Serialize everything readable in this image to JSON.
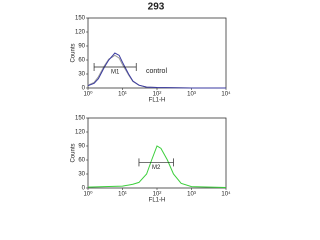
{
  "chart_data": [
    {
      "type": "line",
      "title": "293",
      "xlabel": "FL1-H",
      "ylabel": "Counts",
      "log_x": true,
      "xlim": [
        1,
        10000
      ],
      "ylim": [
        0,
        150
      ],
      "xticks": [
        {
          "value": 1,
          "label": "10⁰"
        },
        {
          "value": 10,
          "label": "10¹"
        },
        {
          "value": 100,
          "label": "10²"
        },
        {
          "value": 1000,
          "label": "10³"
        },
        {
          "value": 10000,
          "label": "10⁴"
        }
      ],
      "yticks": [
        0,
        30,
        60,
        90,
        120,
        150
      ],
      "x": [
        1,
        1.5,
        2,
        3,
        4,
        5,
        6,
        8,
        10,
        15,
        20,
        30,
        50,
        100,
        1000,
        10000
      ],
      "series": [
        {
          "color": "#9a9a9a",
          "values": [
            6,
            12,
            24,
            48,
            62,
            66,
            70,
            64,
            50,
            28,
            14,
            6,
            2,
            1,
            0,
            0
          ]
        },
        {
          "color": "#3a3aa0",
          "values": [
            5,
            10,
            20,
            45,
            60,
            68,
            75,
            70,
            55,
            30,
            15,
            6,
            2,
            1,
            0,
            0
          ]
        }
      ],
      "gate": {
        "label": "M1",
        "range": [
          1.5,
          25
        ],
        "level": 45
      },
      "annotation": "control"
    },
    {
      "type": "line",
      "xlabel": "FL1-H",
      "ylabel": "Counts",
      "log_x": true,
      "xlim": [
        1,
        10000
      ],
      "ylim": [
        0,
        150
      ],
      "xticks": [
        {
          "value": 1,
          "label": "10⁰"
        },
        {
          "value": 10,
          "label": "10¹"
        },
        {
          "value": 100,
          "label": "10²"
        },
        {
          "value": 1000,
          "label": "10³"
        },
        {
          "value": 10000,
          "label": "10⁴"
        }
      ],
      "yticks": [
        0,
        30,
        60,
        90,
        120,
        150
      ],
      "x": [
        1,
        3,
        10,
        20,
        30,
        50,
        70,
        100,
        130,
        200,
        300,
        500,
        1000,
        10000
      ],
      "series": [
        {
          "color": "#3ccf3c",
          "values": [
            2,
            3,
            4,
            8,
            12,
            30,
            60,
            90,
            85,
            60,
            30,
            10,
            3,
            1
          ]
        }
      ],
      "gate": {
        "label": "M2",
        "range": [
          30,
          300
        ],
        "level": 55
      }
    }
  ]
}
